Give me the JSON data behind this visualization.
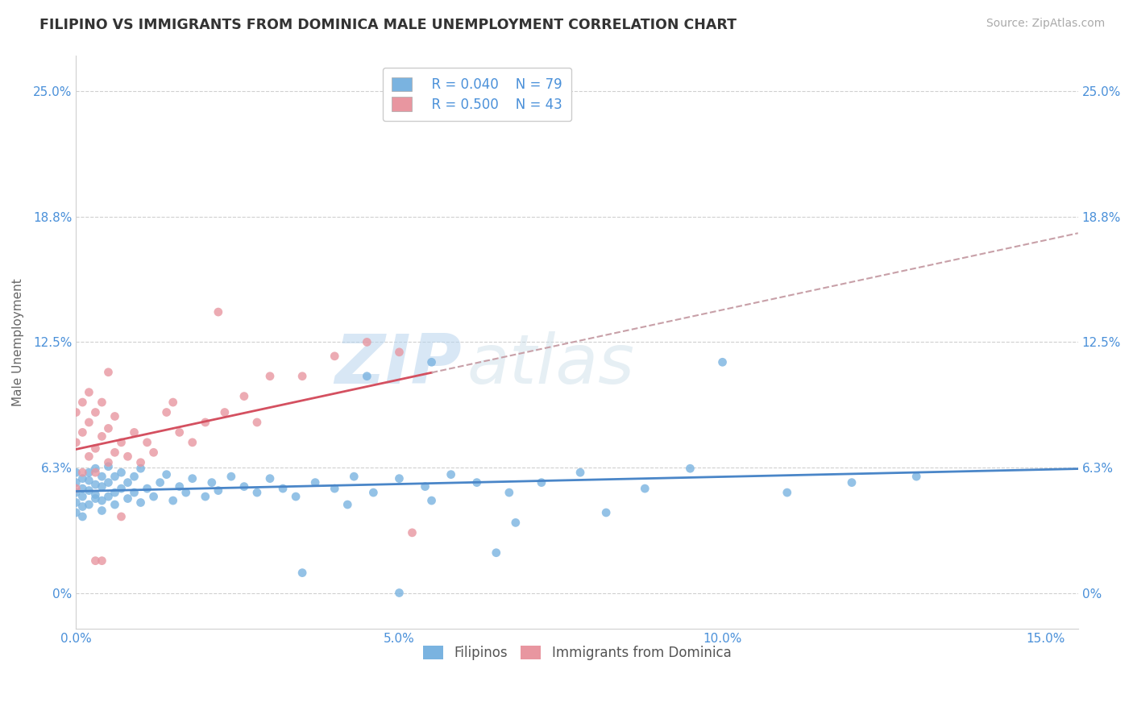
{
  "title": "FILIPINO VS IMMIGRANTS FROM DOMINICA MALE UNEMPLOYMENT CORRELATION CHART",
  "source_text": "Source: ZipAtlas.com",
  "ylabel": "Male Unemployment",
  "xlim": [
    0.0,
    0.155
  ],
  "ylim": [
    -0.018,
    0.268
  ],
  "xticks": [
    0.0,
    0.05,
    0.1,
    0.15
  ],
  "xtick_labels": [
    "0.0%",
    "5.0%",
    "10.0%",
    "15.0%"
  ],
  "yticks": [
    0.0,
    0.0625,
    0.125,
    0.1875,
    0.25
  ],
  "ytick_labels": [
    "0%",
    "6.3%",
    "12.5%",
    "18.8%",
    "25.0%"
  ],
  "filipinos_color": "#7ab3e0",
  "dominica_color": "#e896a0",
  "trend_blue_color": "#4a86c8",
  "trend_pink_color": "#d45060",
  "trend_pink_dashed_color": "#c8a0a8",
  "grid_color": "#d0d0d0",
  "background_color": "#ffffff",
  "watermark_zip": "ZIP",
  "watermark_atlas": "atlas",
  "title_fontsize": 12.5,
  "axis_label_fontsize": 11,
  "tick_fontsize": 11,
  "legend_fontsize": 12,
  "source_fontsize": 10,
  "legend_R_blue": "R = 0.040",
  "legend_N_blue": "N = 79",
  "legend_R_pink": "R = 0.500",
  "legend_N_pink": "N = 43",
  "filipinos_x": [
    0.0,
    0.0,
    0.0,
    0.0,
    0.0,
    0.001,
    0.001,
    0.001,
    0.001,
    0.001,
    0.002,
    0.002,
    0.002,
    0.002,
    0.003,
    0.003,
    0.003,
    0.003,
    0.004,
    0.004,
    0.004,
    0.004,
    0.005,
    0.005,
    0.005,
    0.006,
    0.006,
    0.006,
    0.007,
    0.007,
    0.008,
    0.008,
    0.009,
    0.009,
    0.01,
    0.01,
    0.011,
    0.012,
    0.013,
    0.014,
    0.015,
    0.016,
    0.017,
    0.018,
    0.02,
    0.021,
    0.022,
    0.024,
    0.026,
    0.028,
    0.03,
    0.032,
    0.034,
    0.037,
    0.04,
    0.043,
    0.046,
    0.05,
    0.054,
    0.058,
    0.062,
    0.067,
    0.055,
    0.045,
    0.035,
    0.072,
    0.078,
    0.05,
    0.065,
    0.1,
    0.11,
    0.095,
    0.082,
    0.12,
    0.13,
    0.055,
    0.042,
    0.068,
    0.088
  ],
  "filipinos_y": [
    0.045,
    0.05,
    0.055,
    0.06,
    0.04,
    0.048,
    0.052,
    0.057,
    0.043,
    0.038,
    0.051,
    0.056,
    0.044,
    0.06,
    0.049,
    0.054,
    0.047,
    0.062,
    0.046,
    0.053,
    0.058,
    0.041,
    0.048,
    0.055,
    0.063,
    0.05,
    0.058,
    0.044,
    0.052,
    0.06,
    0.047,
    0.055,
    0.05,
    0.058,
    0.045,
    0.062,
    0.052,
    0.048,
    0.055,
    0.059,
    0.046,
    0.053,
    0.05,
    0.057,
    0.048,
    0.055,
    0.051,
    0.058,
    0.053,
    0.05,
    0.057,
    0.052,
    0.048,
    0.055,
    0.052,
    0.058,
    0.05,
    0.057,
    0.053,
    0.059,
    0.055,
    0.05,
    0.115,
    0.108,
    0.01,
    0.055,
    0.06,
    0.0,
    0.02,
    0.115,
    0.05,
    0.062,
    0.04,
    0.055,
    0.058,
    0.046,
    0.044,
    0.035,
    0.052
  ],
  "dominica_x": [
    0.0,
    0.0,
    0.0,
    0.001,
    0.001,
    0.001,
    0.002,
    0.002,
    0.002,
    0.003,
    0.003,
    0.003,
    0.004,
    0.004,
    0.005,
    0.005,
    0.005,
    0.006,
    0.006,
    0.007,
    0.008,
    0.009,
    0.01,
    0.011,
    0.012,
    0.014,
    0.016,
    0.018,
    0.02,
    0.023,
    0.026,
    0.03,
    0.035,
    0.04,
    0.045,
    0.05,
    0.022,
    0.028,
    0.015,
    0.007,
    0.004,
    0.052,
    0.003
  ],
  "dominica_y": [
    0.052,
    0.075,
    0.09,
    0.06,
    0.08,
    0.095,
    0.068,
    0.085,
    0.1,
    0.072,
    0.09,
    0.06,
    0.078,
    0.095,
    0.065,
    0.082,
    0.11,
    0.07,
    0.088,
    0.075,
    0.068,
    0.08,
    0.065,
    0.075,
    0.07,
    0.09,
    0.08,
    0.075,
    0.085,
    0.09,
    0.098,
    0.108,
    0.108,
    0.118,
    0.125,
    0.12,
    0.14,
    0.085,
    0.095,
    0.038,
    0.016,
    0.03,
    0.016
  ]
}
